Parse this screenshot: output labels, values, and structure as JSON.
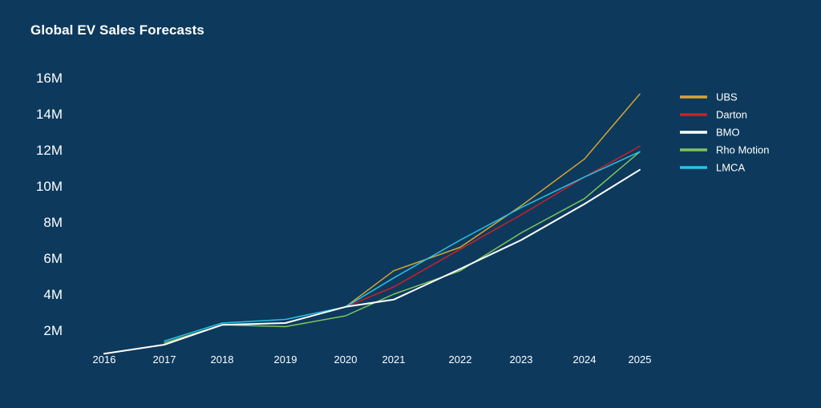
{
  "chart_data": {
    "type": "line",
    "title": "Global EV Sales Forecasts",
    "xlabel": "",
    "ylabel": "",
    "x": [
      2016,
      2017,
      2018,
      2019,
      2020,
      2021,
      2022,
      2023,
      2024,
      2025
    ],
    "yticks": [
      {
        "value": 2000000,
        "label": "2M"
      },
      {
        "value": 4000000,
        "label": "4M"
      },
      {
        "value": 6000000,
        "label": "6M"
      },
      {
        "value": 8000000,
        "label": "8M"
      },
      {
        "value": 10000000,
        "label": "10M"
      },
      {
        "value": 12000000,
        "label": "12M"
      },
      {
        "value": 14000000,
        "label": "14M"
      },
      {
        "value": 16000000,
        "label": "16M"
      }
    ],
    "xticks": [
      "2016",
      "2017",
      "2018",
      "2019",
      "2020",
      "2021",
      "2022",
      "2023",
      "2024",
      "2025"
    ],
    "grid": false,
    "legend_position": "right",
    "series": [
      {
        "name": "UBS",
        "color": "#d8a630",
        "points": [
          [
            2020,
            3300000
          ],
          [
            2021,
            5300000
          ],
          [
            2022,
            6600000
          ],
          [
            2023,
            8900000
          ],
          [
            2024,
            11500000
          ],
          [
            2025,
            15100000
          ]
        ]
      },
      {
        "name": "Darton",
        "color": "#cc1f2a",
        "points": [
          [
            2020,
            3300000
          ],
          [
            2021,
            4400000
          ],
          [
            2022,
            6500000
          ],
          [
            2023,
            8400000
          ],
          [
            2024,
            10500000
          ],
          [
            2025,
            12200000
          ]
        ]
      },
      {
        "name": "BMO",
        "color": "#ffffff",
        "points": [
          [
            2016,
            700000
          ],
          [
            2017,
            1200000
          ],
          [
            2018,
            2300000
          ],
          [
            2019,
            2400000
          ],
          [
            2020,
            3300000
          ],
          [
            2021,
            3700000
          ],
          [
            2022,
            5400000
          ],
          [
            2023,
            7000000
          ],
          [
            2024,
            9000000
          ],
          [
            2025,
            10900000
          ]
        ]
      },
      {
        "name": "Rho Motion",
        "color": "#7fc55a",
        "points": [
          [
            2017,
            1300000
          ],
          [
            2018,
            2300000
          ],
          [
            2019,
            2200000
          ],
          [
            2020,
            2800000
          ],
          [
            2021,
            4000000
          ],
          [
            2022,
            5300000
          ],
          [
            2023,
            7400000
          ],
          [
            2024,
            9300000
          ],
          [
            2025,
            11900000
          ]
        ]
      },
      {
        "name": "LMCA",
        "color": "#27c3e8",
        "points": [
          [
            2017,
            1400000
          ],
          [
            2018,
            2400000
          ],
          [
            2019,
            2600000
          ],
          [
            2020,
            3300000
          ],
          [
            2021,
            4900000
          ],
          [
            2022,
            7000000
          ],
          [
            2023,
            8800000
          ],
          [
            2024,
            10500000
          ],
          [
            2025,
            11900000
          ]
        ]
      }
    ]
  }
}
